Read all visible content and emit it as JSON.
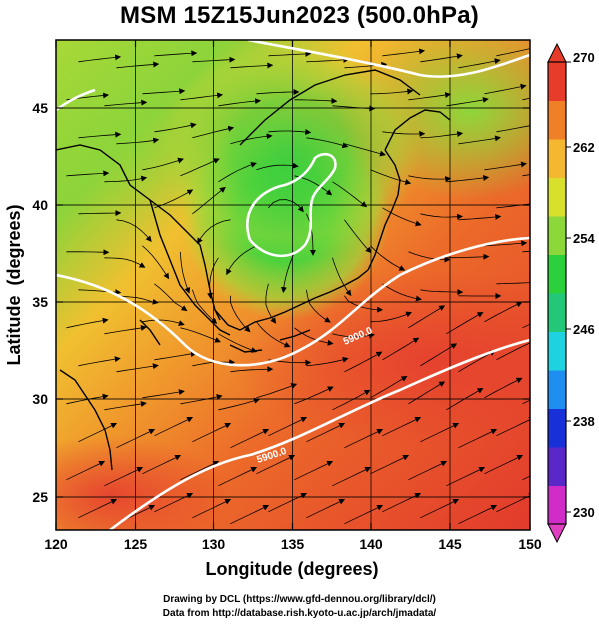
{
  "title": "MSM 15Z15Jun2023 (500.0hPa)",
  "axes": {
    "xlabel": "Longitude (degrees)",
    "ylabel": "Latitude  (degrees)",
    "xticks": [
      "120",
      "125",
      "130",
      "135",
      "140",
      "145",
      "150"
    ],
    "yticks": [
      "25",
      "30",
      "35",
      "40",
      "45"
    ],
    "xlim": [
      120,
      150
    ],
    "ylim": [
      22.4,
      47.6
    ]
  },
  "colorbar": {
    "ticks": [
      "270",
      "262",
      "254",
      "246",
      "238",
      "230"
    ],
    "range": [
      230,
      270
    ],
    "colors": [
      "#d02cc8",
      "#5a28c8",
      "#1830d8",
      "#1e8ef0",
      "#1ed2e0",
      "#22c878",
      "#2cd03c",
      "#8cd83a",
      "#d8e02c",
      "#f4b830",
      "#f08028",
      "#e83c2a"
    ]
  },
  "contours": {
    "labels": [
      "5900.0",
      "5900.0"
    ],
    "color": "#ffffff"
  },
  "credits": {
    "line1": "Drawing by DCL (https://www.gfd-dennou.org/library/dcl/)",
    "line2": "Data from http://database.rish.kyoto-u.ac.jp/arch/jmadata/"
  }
}
